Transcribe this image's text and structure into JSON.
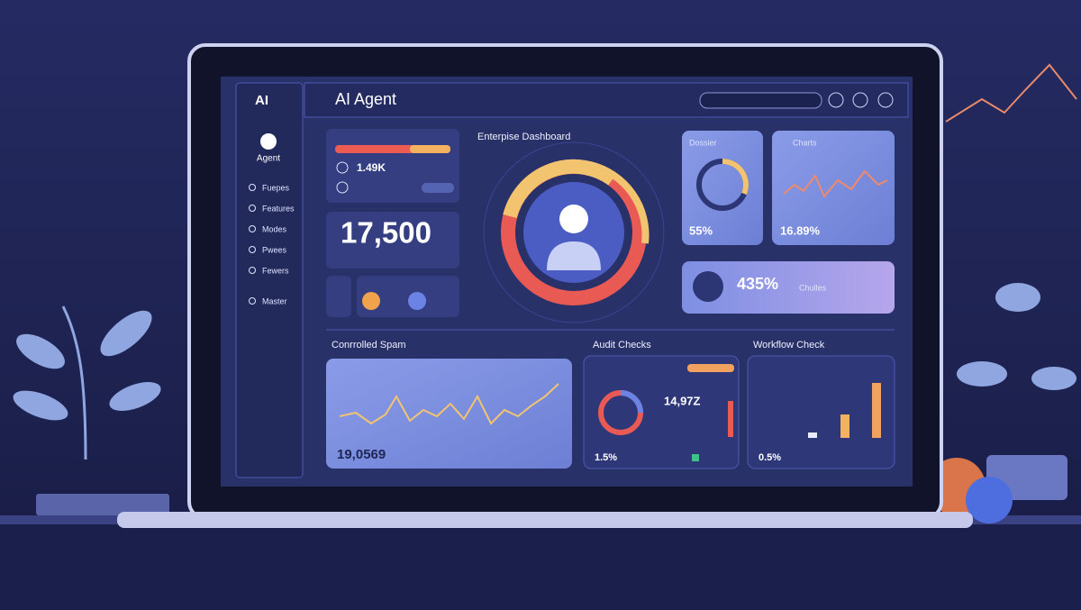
{
  "sidebar": {
    "logo": "AI",
    "agent": "Agent",
    "items": [
      "Fuepes",
      "Features",
      "Modes",
      "Pwees",
      "Fewers",
      "Master"
    ]
  },
  "header": {
    "title": "AI Agent"
  },
  "dashboard": {
    "title": "Enterpise Dashboard",
    "stat_small": "1.49K",
    "stat_big": "17,500",
    "dossier": {
      "title": "Dossier",
      "value": "55%"
    },
    "charts": {
      "title": "Charts",
      "value": "16.89%"
    },
    "wide": {
      "value": "435%",
      "label": "Chulles"
    },
    "sections": {
      "spam": {
        "title": "Conrrolled Spam",
        "value": "19,0569"
      },
      "audit": {
        "title": "Audit Checks",
        "value": "14,97Z",
        "foot": "1.5%"
      },
      "workflow": {
        "title": "Workflow Check",
        "foot": "0.5%"
      }
    }
  }
}
